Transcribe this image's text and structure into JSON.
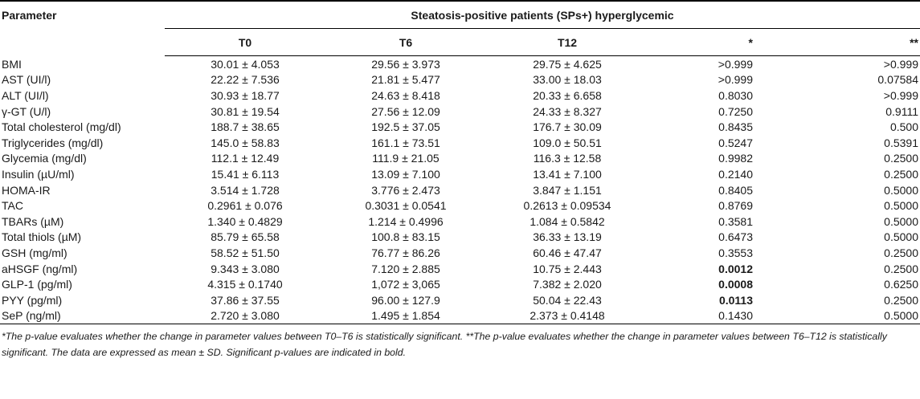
{
  "header": {
    "parameter": "Parameter",
    "group": "Steatosis-positive patients (SPs+) hyperglycemic",
    "cols": [
      "T0",
      "T6",
      "T12",
      "*",
      "**"
    ]
  },
  "rows": [
    {
      "name": "BMI",
      "t0": "30.01 ± 4.053",
      "t6": "29.56 ± 3.973",
      "t12": "29.75 ± 4.625",
      "p1": ">0.999",
      "p2": ">0.999",
      "p1_bold": false
    },
    {
      "name": "AST (UI/l)",
      "t0": "22.22 ± 7.536",
      "t6": "21.81 ± 5.477",
      "t12": "33.00 ± 18.03",
      "p1": ">0.999",
      "p2": "0.07584",
      "p1_bold": false
    },
    {
      "name": "ALT (UI/l)",
      "t0": "30.93 ± 18.77",
      "t6": "24.63 ± 8.418",
      "t12": "20.33 ± 6.658",
      "p1": "0.8030",
      "p2": ">0.999",
      "p1_bold": false
    },
    {
      "name": "γ-GT (U/l)",
      "t0": "30.81 ± 19.54",
      "t6": "27.56 ± 12.09",
      "t12": "24.33 ± 8.327",
      "p1": "0.7250",
      "p2": "0.9111",
      "p1_bold": false
    },
    {
      "name": "Total cholesterol (mg/dl)",
      "t0": "188.7 ± 38.65",
      "t6": "192.5 ± 37.05",
      "t12": "176.7 ± 30.09",
      "p1": "0.8435",
      "p2": "0.500",
      "p1_bold": false
    },
    {
      "name": "Triglycerides (mg/dl)",
      "t0": "145.0 ± 58.83",
      "t6": "161.1 ± 73.51",
      "t12": "109.0 ± 50.51",
      "p1": "0.5247",
      "p2": "0.5391",
      "p1_bold": false
    },
    {
      "name": "Glycemia (mg/dl)",
      "t0": "112.1 ± 12.49",
      "t6": "111.9 ± 21.05",
      "t12": "116.3 ± 12.58",
      "p1": "0.9982",
      "p2": "0.2500",
      "p1_bold": false
    },
    {
      "name": "Insulin (µU/ml)",
      "t0": "15.41 ± 6.113",
      "t6": "13.09 ± 7.100",
      "t12": "13.41 ± 7.100",
      "p1": "0.2140",
      "p2": "0.2500",
      "p1_bold": false
    },
    {
      "name": "HOMA-IR",
      "t0": "3.514 ± 1.728",
      "t6": "3.776 ± 2.473",
      "t12": "3.847 ± 1.151",
      "p1": "0.8405",
      "p2": "0.5000",
      "p1_bold": false
    },
    {
      "name": "TAC",
      "t0": "0.2961 ± 0.076",
      "t6": "0.3031 ± 0.0541",
      "t12": "0.2613 ± 0.09534",
      "p1": "0.8769",
      "p2": "0.5000",
      "p1_bold": false
    },
    {
      "name": "TBARs (µM)",
      "t0": "1.340 ± 0.4829",
      "t6": "1.214 ± 0.4996",
      "t12": "1.084 ± 0.5842",
      "p1": "0.3581",
      "p2": "0.5000",
      "p1_bold": false
    },
    {
      "name": "Total thiols (µM)",
      "t0": "85.79 ± 65.58",
      "t6": "100.8 ± 83.15",
      "t12": "36.33 ± 13.19",
      "p1": "0.6473",
      "p2": "0.5000",
      "p1_bold": false
    },
    {
      "name": "GSH (mg/ml)",
      "t0": "58.52 ± 51.50",
      "t6": "76.77 ± 86.26",
      "t12": "60.46 ± 47.47",
      "p1": "0.3553",
      "p2": "0.2500",
      "p1_bold": false
    },
    {
      "name": "aHSGF (ng/ml)",
      "t0": "9.343 ± 3.080",
      "t6": "7.120 ± 2.885",
      "t12": "10.75 ± 2.443",
      "p1": "0.0012",
      "p2": "0.2500",
      "p1_bold": true
    },
    {
      "name": "GLP-1 (pg/ml)",
      "t0": "4.315 ± 0.1740",
      "t6": "1,072 ± 3,065",
      "t12": "7.382 ± 2.020",
      "p1": "0.0008",
      "p2": "0.6250",
      "p1_bold": true
    },
    {
      "name": "PYY (pg/ml)",
      "t0": "37.86 ± 37.55",
      "t6": "96.00 ± 127.9",
      "t12": "50.04 ± 22.43",
      "p1": "0.0113",
      "p2": "0.2500",
      "p1_bold": true
    },
    {
      "name": "SeP (ng/ml)",
      "t0": "2.720 ± 3.080",
      "t6": "1.495 ± 1.854",
      "t12": "2.373 ± 0.4148",
      "p1": "0.1430",
      "p2": "0.5000",
      "p1_bold": false
    }
  ],
  "footnote": "*The p-value evaluates whether the change in parameter values between T0–T6 is statistically significant. **The p-value evaluates whether the change in parameter values between T6–T12 is statistically significant. The data are expressed as mean ± SD. Significant p-values are indicated in bold."
}
